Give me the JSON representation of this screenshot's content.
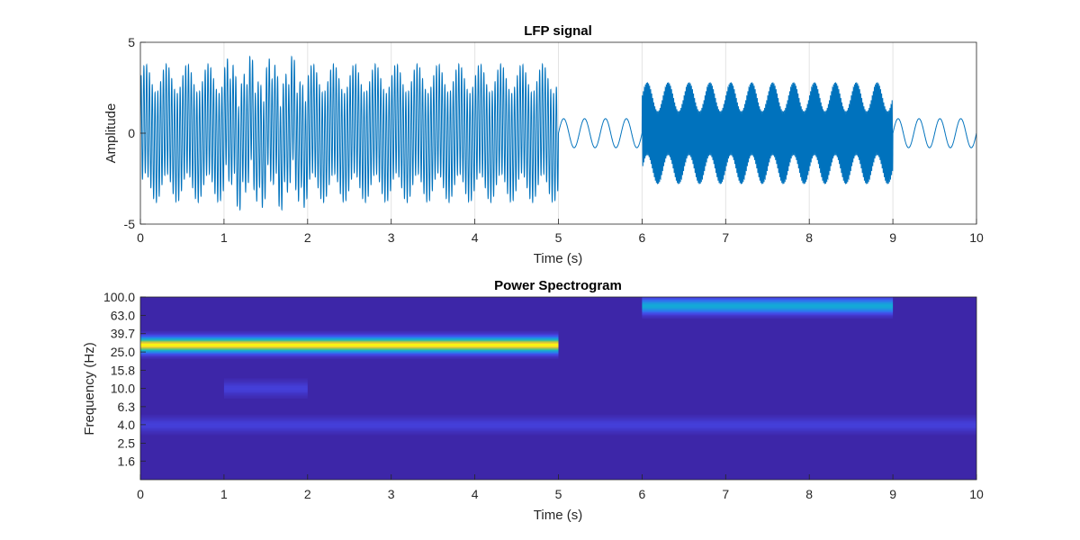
{
  "chart_data": [
    {
      "type": "line",
      "title": "LFP signal",
      "xlabel": "Time (s)",
      "ylabel": "Amplitude",
      "xlim": [
        0,
        10
      ],
      "ylim": [
        -5,
        5
      ],
      "x_ticks": [
        "0",
        "1",
        "2",
        "3",
        "4",
        "5",
        "6",
        "7",
        "8",
        "9",
        "10"
      ],
      "y_ticks": [
        "-5",
        "0",
        "5"
      ],
      "grid": "vertical",
      "color": "#0072BD",
      "segments": [
        {
          "t_start": 0,
          "t_end": 5,
          "components": [
            {
              "freq_hz": 4,
              "amp": 0.8
            },
            {
              "freq_hz": 30,
              "amp": 3.0
            }
          ],
          "extra": {
            "t_start": 1,
            "t_end": 2,
            "freq_hz": 10,
            "amp": 0.8
          }
        },
        {
          "t_start": 5,
          "t_end": 6,
          "components": [
            {
              "freq_hz": 4,
              "amp": 0.8
            }
          ]
        },
        {
          "t_start": 6,
          "t_end": 9,
          "components": [
            {
              "freq_hz": 4,
              "amp": 0.8
            },
            {
              "freq_hz": 80,
              "amp": 2.0
            }
          ]
        },
        {
          "t_start": 9,
          "t_end": 10,
          "components": [
            {
              "freq_hz": 4,
              "amp": 0.8
            }
          ]
        }
      ]
    },
    {
      "type": "heatmap",
      "title": "Power Spectrogram",
      "xlabel": "Time (s)",
      "ylabel": "Frequency (Hz)",
      "xlim": [
        0,
        10
      ],
      "y_scale": "log",
      "x_ticks": [
        "0",
        "1",
        "2",
        "3",
        "4",
        "5",
        "6",
        "7",
        "8",
        "9",
        "10"
      ],
      "y_ticks": [
        "100.0",
        "63.0",
        "39.7",
        "25.0",
        "15.8",
        "10.0",
        "6.3",
        "4.0",
        "2.5",
        "1.6"
      ],
      "colormap": "parula",
      "bands": [
        {
          "freq_hz": 30,
          "t_start": 0,
          "t_end": 5,
          "power": 1.0
        },
        {
          "freq_hz": 80,
          "t_start": 6,
          "t_end": 9,
          "power": 0.5
        },
        {
          "freq_hz": 10,
          "t_start": 1,
          "t_end": 2,
          "power": 0.12
        },
        {
          "freq_hz": 4,
          "t_start": 0,
          "t_end": 10,
          "power": 0.12
        }
      ],
      "background_color": "#3d26a8"
    }
  ]
}
